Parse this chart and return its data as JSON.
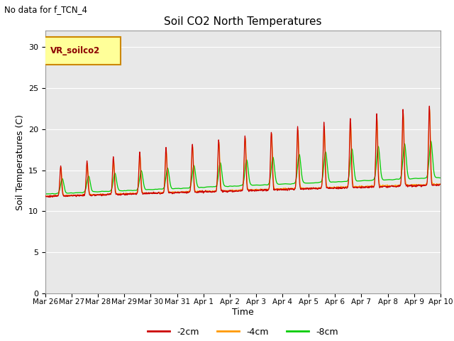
{
  "title": "Soil CO2 North Temperatures",
  "subtitle": "No data for f_TCN_4",
  "ylabel": "Soil Temperatures (C)",
  "xlabel": "Time",
  "legend_label": "VR_soilco2",
  "ylim": [
    0,
    32
  ],
  "yticks": [
    0,
    5,
    10,
    15,
    20,
    25,
    30
  ],
  "colors": {
    "line_2cm": "#cc0000",
    "line_4cm": "#ff9900",
    "line_8cm": "#00cc00",
    "bg_plot": "#e8e8e8",
    "bg_figure": "#ffffff",
    "legend_box_fill": "#ffff99",
    "legend_box_edge": "#cc8800"
  },
  "x_tick_labels": [
    "Mar 26",
    "Mar 27",
    "Mar 28",
    "Mar 29",
    "Mar 30",
    "Mar 31",
    "Apr 1",
    "Apr 2",
    "Apr 3",
    "Apr 4",
    "Apr 5",
    "Apr 6",
    "Apr 7",
    "Apr 8",
    "Apr 9",
    "Apr 10"
  ],
  "series_labels": [
    "-2cm",
    "-4cm",
    "-8cm"
  ]
}
